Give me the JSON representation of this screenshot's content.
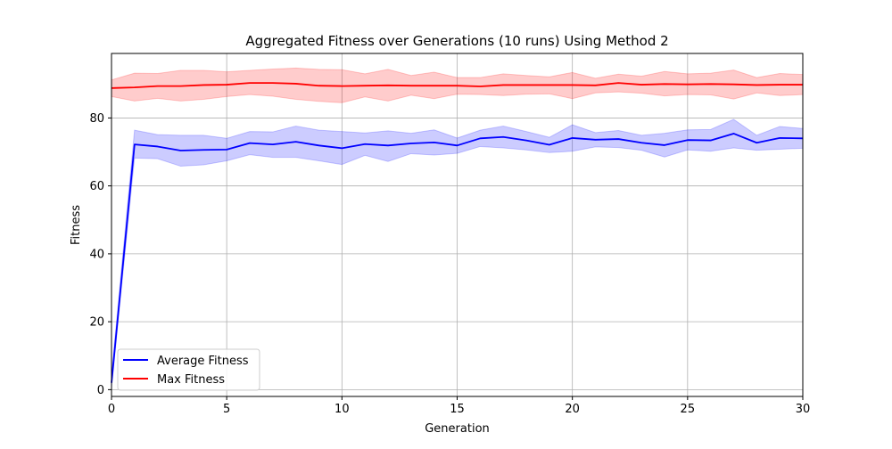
{
  "chart_data": {
    "type": "line",
    "title": "Aggregated Fitness over Generations (10 runs) Using Method 2",
    "xlabel": "Generation",
    "ylabel": "Fitness",
    "xlim": [
      0,
      30
    ],
    "ylim": [
      -2,
      99
    ],
    "grid": true,
    "legend_position": "bottom-left",
    "x_ticks": [
      0,
      5,
      10,
      15,
      20,
      25,
      30
    ],
    "y_ticks": [
      0,
      20,
      40,
      60,
      80
    ],
    "x": [
      0,
      1,
      2,
      3,
      4,
      5,
      6,
      7,
      8,
      9,
      10,
      11,
      12,
      13,
      14,
      15,
      16,
      17,
      18,
      19,
      20,
      21,
      22,
      23,
      24,
      25,
      26,
      27,
      28,
      29,
      30
    ],
    "series": [
      {
        "name": "Average Fitness",
        "color": "#0000ff",
        "band_color": "#0000ff",
        "values": [
          2.0,
          72.2,
          71.6,
          70.4,
          70.6,
          70.7,
          72.6,
          72.2,
          73.0,
          71.9,
          71.1,
          72.3,
          71.9,
          72.5,
          72.8,
          71.9,
          74.0,
          74.4,
          73.4,
          72.1,
          74.1,
          73.6,
          73.8,
          72.7,
          72.0,
          73.5,
          73.4,
          75.4,
          72.7,
          74.1,
          74.0
        ],
        "upper": [
          4.5,
          76.4,
          75.1,
          74.9,
          74.9,
          74.0,
          76.0,
          75.9,
          77.6,
          76.4,
          76.0,
          75.6,
          76.2,
          75.5,
          76.5,
          74.1,
          76.4,
          77.6,
          76.0,
          74.3,
          78.0,
          75.7,
          76.3,
          74.9,
          75.5,
          76.5,
          76.6,
          79.6,
          74.9,
          77.5,
          76.9
        ],
        "lower": [
          0.5,
          68.2,
          68.0,
          65.8,
          66.2,
          67.4,
          69.2,
          68.4,
          68.4,
          67.4,
          66.3,
          69.0,
          67.2,
          69.5,
          69.1,
          69.6,
          71.6,
          71.2,
          70.6,
          69.8,
          70.2,
          71.5,
          71.3,
          70.5,
          68.5,
          70.6,
          70.2,
          71.2,
          70.5,
          70.8,
          71.1
        ]
      },
      {
        "name": "Max Fitness",
        "color": "#ff0000",
        "band_color": "#ff0000",
        "values": [
          88.8,
          89.0,
          89.4,
          89.4,
          89.7,
          89.8,
          90.3,
          90.3,
          90.1,
          89.5,
          89.4,
          89.5,
          89.6,
          89.5,
          89.5,
          89.5,
          89.3,
          89.7,
          89.7,
          89.7,
          89.7,
          89.6,
          90.3,
          89.8,
          90.0,
          89.9,
          90.0,
          89.9,
          89.7,
          89.8,
          89.8
        ],
        "upper": [
          91.2,
          93.2,
          93.1,
          94.0,
          94.0,
          93.6,
          94.0,
          94.4,
          94.7,
          94.3,
          94.2,
          93.0,
          94.3,
          92.5,
          93.5,
          91.9,
          91.9,
          93.0,
          92.5,
          92.1,
          93.4,
          91.7,
          92.9,
          92.3,
          93.7,
          93.0,
          93.2,
          94.1,
          91.9,
          93.1,
          92.8
        ],
        "lower": [
          86.3,
          85.0,
          85.8,
          85.0,
          85.5,
          86.3,
          86.9,
          86.4,
          85.5,
          84.9,
          84.5,
          86.2,
          85.0,
          86.7,
          85.7,
          87.0,
          86.9,
          86.6,
          87.0,
          87.1,
          85.7,
          87.4,
          87.7,
          87.3,
          86.5,
          86.9,
          86.8,
          85.6,
          87.4,
          86.6,
          86.9
        ]
      }
    ]
  }
}
